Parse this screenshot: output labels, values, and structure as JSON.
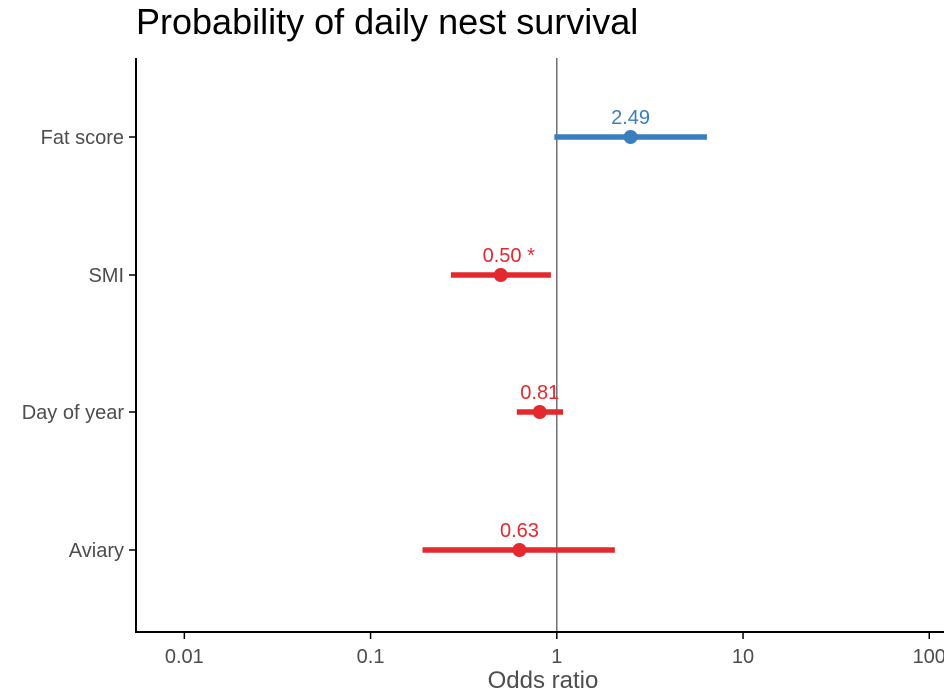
{
  "chart_data": {
    "type": "forest",
    "title": "Probability of daily nest survival",
    "xlabel": "Odds ratio",
    "ylabel": "",
    "x_scale": "log10",
    "xlim": [
      0.0055,
      120
    ],
    "x_ticks": [
      0.01,
      0.1,
      1,
      10,
      100
    ],
    "x_tick_labels": [
      "0.01",
      "0.1",
      "1",
      "10",
      "100"
    ],
    "reference_line": 1,
    "grid": false,
    "colors": {
      "positive": "#3a7fbd",
      "negative": "#e3292d",
      "reference": "#595959",
      "axis": "#000000",
      "tick_text": "#4d4d4d"
    },
    "rows": [
      {
        "category": "Fat score",
        "estimate": 2.49,
        "lower": 0.97,
        "upper": 6.4,
        "label": "2.49",
        "direction": "positive"
      },
      {
        "category": "SMI",
        "estimate": 0.5,
        "lower": 0.27,
        "upper": 0.93,
        "label": "0.50 *",
        "direction": "negative"
      },
      {
        "category": "Day of year",
        "estimate": 0.81,
        "lower": 0.61,
        "upper": 1.08,
        "label": "0.81",
        "direction": "negative"
      },
      {
        "category": "Aviary",
        "estimate": 0.63,
        "lower": 0.19,
        "upper": 2.05,
        "label": "0.63",
        "direction": "negative"
      }
    ]
  }
}
